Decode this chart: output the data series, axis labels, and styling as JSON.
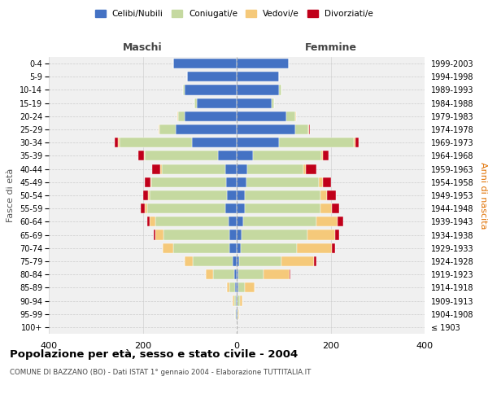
{
  "age_groups": [
    "100+",
    "95-99",
    "90-94",
    "85-89",
    "80-84",
    "75-79",
    "70-74",
    "65-69",
    "60-64",
    "55-59",
    "50-54",
    "45-49",
    "40-44",
    "35-39",
    "30-34",
    "25-29",
    "20-24",
    "15-19",
    "10-14",
    "5-9",
    "0-4"
  ],
  "birth_years": [
    "≤ 1903",
    "1904-1908",
    "1909-1913",
    "1914-1918",
    "1919-1923",
    "1924-1928",
    "1929-1933",
    "1934-1938",
    "1939-1943",
    "1944-1948",
    "1949-1953",
    "1954-1958",
    "1959-1963",
    "1964-1968",
    "1969-1973",
    "1974-1978",
    "1979-1983",
    "1984-1988",
    "1989-1993",
    "1994-1998",
    "1999-2003"
  ],
  "male": {
    "celibi": [
      0,
      1,
      2,
      4,
      5,
      8,
      15,
      16,
      18,
      25,
      20,
      22,
      25,
      40,
      95,
      130,
      110,
      85,
      110,
      105,
      135
    ],
    "coniugati": [
      0,
      2,
      4,
      12,
      45,
      85,
      120,
      140,
      155,
      165,
      165,
      160,
      135,
      155,
      155,
      35,
      15,
      5,
      5,
      0,
      0
    ],
    "vedovi": [
      0,
      1,
      2,
      5,
      15,
      18,
      22,
      18,
      12,
      6,
      3,
      2,
      2,
      2,
      2,
      1,
      1,
      0,
      0,
      0,
      0
    ],
    "divorziati": [
      0,
      0,
      0,
      0,
      0,
      0,
      0,
      3,
      5,
      8,
      12,
      12,
      18,
      12,
      8,
      1,
      1,
      0,
      0,
      0,
      0
    ]
  },
  "female": {
    "nubili": [
      0,
      1,
      2,
      3,
      3,
      5,
      8,
      10,
      14,
      18,
      18,
      20,
      22,
      35,
      90,
      125,
      105,
      75,
      90,
      90,
      110
    ],
    "coniugate": [
      0,
      2,
      5,
      15,
      55,
      90,
      120,
      140,
      155,
      160,
      160,
      155,
      120,
      145,
      160,
      28,
      20,
      5,
      5,
      0,
      0
    ],
    "vedove": [
      0,
      2,
      5,
      20,
      55,
      70,
      75,
      60,
      45,
      25,
      15,
      8,
      5,
      3,
      2,
      1,
      1,
      0,
      0,
      0,
      0
    ],
    "divorziate": [
      0,
      0,
      0,
      0,
      2,
      4,
      6,
      8,
      12,
      15,
      18,
      18,
      22,
      12,
      8,
      2,
      1,
      0,
      0,
      0,
      0
    ]
  },
  "colors": {
    "celibi_nubili": "#4472c4",
    "coniugati_e": "#c5d9a0",
    "vedovi_e": "#f5c97a",
    "divorziati_e": "#c0001a"
  },
  "title": "Popolazione per età, sesso e stato civile - 2004",
  "subtitle": "COMUNE DI BAZZANO (BO) - Dati ISTAT 1° gennaio 2004 - Elaborazione TUTTITALIA.IT",
  "xlabel_left": "Maschi",
  "xlabel_right": "Femmine",
  "ylabel_left": "Fasce di età",
  "ylabel_right": "Anni di nascita",
  "xlim": 400,
  "legend_labels": [
    "Celibi/Nubili",
    "Coniugati/e",
    "Vedovi/e",
    "Divorziati/e"
  ],
  "bg_color": "#ffffff",
  "plot_bg_color": "#f0f0f0",
  "grid_color": "#cccccc"
}
